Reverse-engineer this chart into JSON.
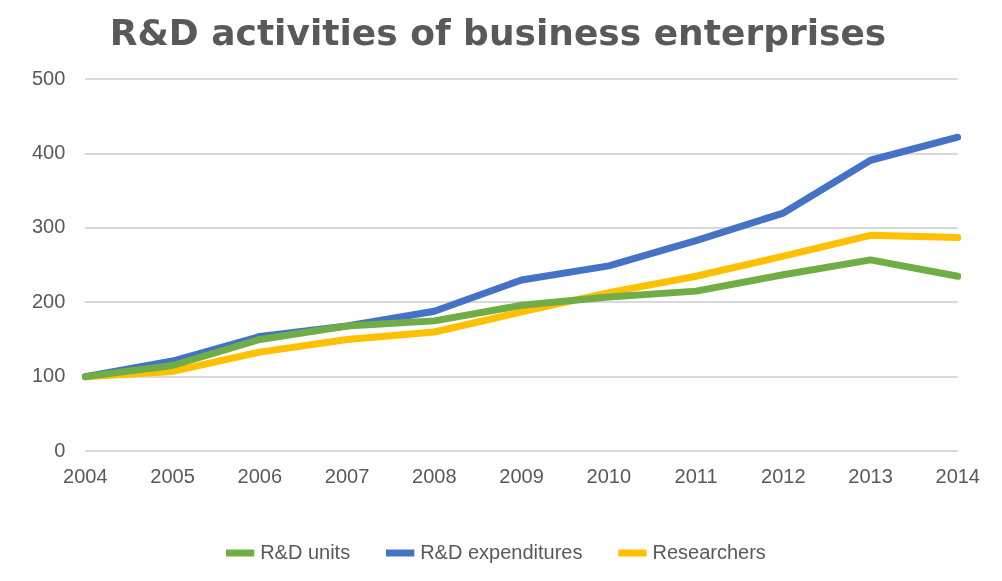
{
  "chart_data": {
    "type": "line",
    "title": "R&D activities of business enterprises",
    "categories": [
      "2004",
      "2005",
      "2006",
      "2007",
      "2008",
      "2009",
      "2010",
      "2011",
      "2012",
      "2013",
      "2014"
    ],
    "series": [
      {
        "name": "R&D units",
        "color": "#70ad47",
        "values": [
          100,
          115,
          150,
          168,
          175,
          196,
          207,
          215,
          237,
          257,
          235
        ]
      },
      {
        "name": "R&D expenditures",
        "color": "#4472c4",
        "values": [
          100,
          121,
          154,
          168,
          188,
          230,
          249,
          283,
          320,
          391,
          422
        ]
      },
      {
        "name": "Researchers",
        "color": "#ffc000",
        "values": [
          100,
          107,
          133,
          150,
          160,
          187,
          213,
          235,
          262,
          290,
          287
        ]
      }
    ],
    "ylim": [
      0,
      500
    ],
    "yticks": [
      0,
      100,
      200,
      300,
      400,
      500
    ],
    "grid": "y",
    "legend": "bottom",
    "marker": "none",
    "line_style": "solid"
  }
}
